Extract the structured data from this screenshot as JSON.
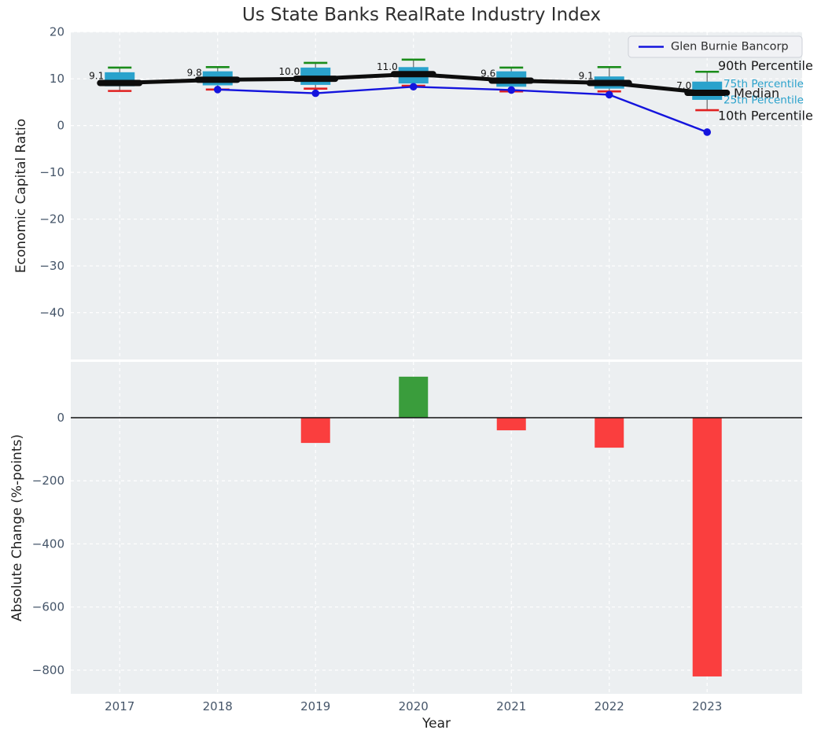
{
  "title": "Us State Banks RealRate Industry Index",
  "colors": {
    "axes_bg": "#eceff1",
    "grid": "#ffffff",
    "box_fill": "#2aa2cc",
    "p90_cap": "#1a8c1a",
    "p10_cap": "#e02020",
    "whisker": "#7a7a7a",
    "median_line": "#0d0d0d",
    "company_line": "#1414dd",
    "bar_negative": "#fa3e3e",
    "bar_positive": "#3a9d3c",
    "tick_label": "#46566a",
    "annotation_cyan": "#2aa2cc",
    "annotation_black": "#1a1a1a",
    "legend_bg": "#f1f2f5",
    "legend_border": "#cdd0d8",
    "zero_line": "#111111"
  },
  "chart_data": [
    {
      "type": "box-percentile-timeseries",
      "title": "Us State Banks RealRate Industry Index",
      "ylabel": "Economic Capital Ratio",
      "categories": [
        "2017",
        "2018",
        "2019",
        "2020",
        "2021",
        "2022",
        "2023"
      ],
      "yticks": [
        20,
        10,
        0,
        -10,
        -20,
        -30,
        -40
      ],
      "ytick_labels": [
        "20",
        "10",
        "0",
        "−10",
        "−20",
        "−30",
        "−40"
      ],
      "ylim": [
        -50,
        20
      ],
      "grid": true,
      "legend_position": "upper right",
      "series": {
        "p90": [
          12.4,
          12.5,
          13.4,
          14.1,
          12.4,
          12.5,
          11.5
        ],
        "p75": [
          11.4,
          11.6,
          12.4,
          12.5,
          11.6,
          10.5,
          9.4
        ],
        "median": [
          9.1,
          9.8,
          10.0,
          11.0,
          9.6,
          9.1,
          7.0
        ],
        "p25": [
          8.4,
          8.6,
          8.7,
          9.0,
          8.3,
          7.9,
          5.5
        ],
        "p10": [
          7.4,
          7.7,
          7.9,
          8.5,
          7.3,
          7.3,
          3.3
        ]
      },
      "median_labels": [
        "9.1",
        "9.8",
        "10.0",
        "11.0",
        "9.6",
        "9.1",
        "7.0"
      ],
      "company_series": {
        "name": "Glen Burnie Bancorp",
        "categories": [
          "2018",
          "2019",
          "2020",
          "2021",
          "2022",
          "2023"
        ],
        "values": [
          7.7,
          6.9,
          8.3,
          7.6,
          6.6,
          -1.4
        ]
      },
      "right_annotations": [
        {
          "label": "90th Percentile",
          "style": "black",
          "anchor": "p90"
        },
        {
          "label": "75th Percentile",
          "style": "cyan",
          "anchor": "p75"
        },
        {
          "label": "Median",
          "style": "black",
          "anchor": "median"
        },
        {
          "label": "25th Percentile",
          "style": "cyan",
          "anchor": "p25"
        },
        {
          "label": "10th Percentile",
          "style": "black",
          "anchor": "p10"
        }
      ],
      "legend": {
        "entries": [
          {
            "label": "Glen Burnie Bancorp"
          }
        ]
      }
    },
    {
      "type": "bar",
      "ylabel": "Absolute Change (%-points)",
      "xlabel": "Year",
      "categories": [
        "2017",
        "2018",
        "2019",
        "2020",
        "2021",
        "2022",
        "2023"
      ],
      "values": [
        0,
        0,
        -80,
        130,
        -40,
        -95,
        -820
      ],
      "yticks": [
        0,
        -200,
        -400,
        -600,
        -800
      ],
      "ytick_labels": [
        "0",
        "−200",
        "−400",
        "−600",
        "−800"
      ],
      "ylim": [
        -875,
        177
      ],
      "grid": true
    }
  ]
}
